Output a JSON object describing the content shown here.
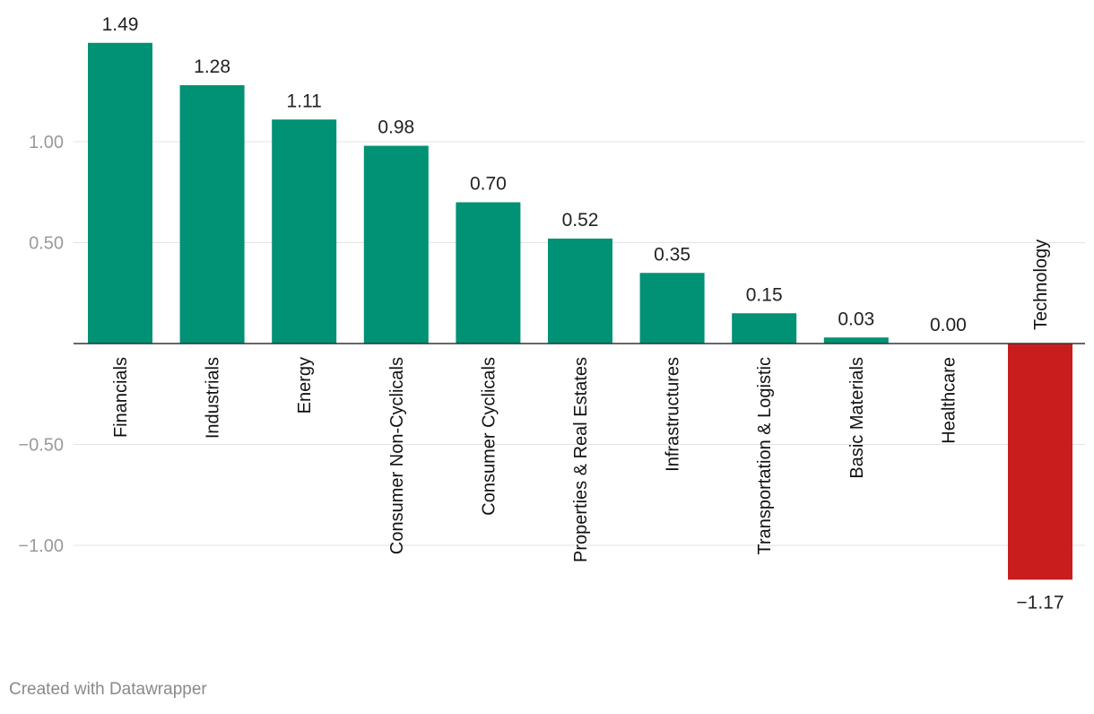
{
  "chart_data": {
    "type": "bar",
    "categories": [
      "Financials",
      "Industrials",
      "Energy",
      "Consumer Non-Cyclicals",
      "Consumer Cyclicals",
      "Properties & Real Estates",
      "Infrastructures",
      "Transportation & Logistic",
      "Basic Materials",
      "Healthcare",
      "Technology"
    ],
    "values": [
      1.49,
      1.28,
      1.11,
      0.98,
      0.7,
      0.52,
      0.35,
      0.15,
      0.03,
      0.0,
      -1.17
    ],
    "value_labels": [
      "1.49",
      "1.28",
      "1.11",
      "0.98",
      "0.70",
      "0.52",
      "0.35",
      "0.15",
      "0.03",
      "0.00",
      "−1.17"
    ],
    "y_ticks": [
      1.0,
      0.5,
      -0.5,
      -1.0
    ],
    "y_tick_labels": [
      "1.00",
      "0.50",
      "−0.50",
      "−1.00"
    ],
    "ylim": [
      -1.2,
      1.6
    ],
    "grid": true,
    "colors": {
      "positive": "#019174",
      "negative": "#c71e1d"
    }
  },
  "footer": {
    "credit": "Created with Datawrapper"
  }
}
